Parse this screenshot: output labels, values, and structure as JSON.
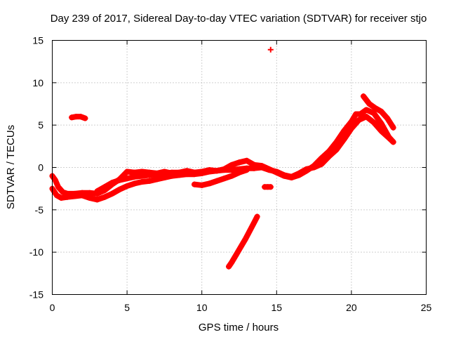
{
  "chart_data": {
    "type": "scatter",
    "title": "Day 239 of 2017, Sidereal Day-to-day VTEC variation (SDTVAR) for receiver stjo",
    "xlabel": "GPS time / hours",
    "ylabel": "SDTVAR / TECUs",
    "xlim": [
      0,
      25
    ],
    "ylim": [
      -15,
      15
    ],
    "xticks": [
      0,
      5,
      10,
      15,
      20,
      25
    ],
    "yticks": [
      -15,
      -10,
      -5,
      0,
      5,
      10,
      15
    ],
    "grid": true,
    "marker": "+",
    "series_color": "#ff0000",
    "series": [
      {
        "name": "track-main-upper",
        "points": [
          [
            0.0,
            -1.0
          ],
          [
            0.2,
            -1.5
          ],
          [
            0.4,
            -2.3
          ],
          [
            0.7,
            -2.9
          ],
          [
            1.0,
            -3.1
          ],
          [
            1.5,
            -3.1
          ],
          [
            2.0,
            -3.0
          ],
          [
            2.5,
            -3.0
          ],
          [
            3.0,
            -3.1
          ],
          [
            3.5,
            -2.7
          ],
          [
            4.0,
            -2.0
          ],
          [
            4.5,
            -1.4
          ],
          [
            5.0,
            -0.5
          ],
          [
            5.5,
            -0.6
          ],
          [
            6.0,
            -0.5
          ],
          [
            6.5,
            -0.6
          ],
          [
            7.0,
            -0.7
          ],
          [
            7.5,
            -0.5
          ],
          [
            8.0,
            -0.7
          ],
          [
            8.5,
            -0.6
          ],
          [
            9.0,
            -0.4
          ],
          [
            9.5,
            -0.6
          ],
          [
            10.0,
            -0.5
          ],
          [
            10.5,
            -0.3
          ],
          [
            11.0,
            -0.4
          ],
          [
            11.5,
            -0.2
          ],
          [
            12.0,
            0.3
          ],
          [
            12.5,
            0.6
          ],
          [
            13.0,
            0.8
          ],
          [
            13.5,
            0.3
          ],
          [
            14.0,
            0.2
          ],
          [
            14.5,
            -0.2
          ],
          [
            15.0,
            -0.6
          ],
          [
            15.5,
            -1.0
          ],
          [
            16.0,
            -1.2
          ],
          [
            16.5,
            -0.9
          ],
          [
            17.0,
            -0.4
          ],
          [
            17.5,
            0.2
          ],
          [
            18.0,
            1.1
          ],
          [
            18.5,
            1.9
          ],
          [
            19.0,
            3.0
          ],
          [
            19.5,
            4.3
          ],
          [
            20.0,
            5.4
          ],
          [
            20.3,
            6.3
          ],
          [
            20.6,
            6.3
          ],
          [
            21.0,
            6.8
          ],
          [
            21.5,
            6.4
          ],
          [
            22.0,
            5.2
          ],
          [
            22.5,
            3.6
          ],
          [
            22.8,
            3.0
          ]
        ]
      },
      {
        "name": "track-main-lower",
        "points": [
          [
            0.0,
            -2.5
          ],
          [
            0.3,
            -3.3
          ],
          [
            0.6,
            -3.6
          ],
          [
            1.0,
            -3.5
          ],
          [
            1.5,
            -3.4
          ],
          [
            2.0,
            -3.3
          ],
          [
            2.5,
            -3.6
          ],
          [
            3.0,
            -3.8
          ],
          [
            3.5,
            -3.5
          ],
          [
            4.0,
            -3.1
          ],
          [
            4.5,
            -2.6
          ],
          [
            5.0,
            -2.2
          ],
          [
            5.5,
            -1.9
          ],
          [
            6.0,
            -1.7
          ],
          [
            6.5,
            -1.6
          ],
          [
            7.0,
            -1.4
          ],
          [
            7.5,
            -1.2
          ],
          [
            8.0,
            -1.0
          ],
          [
            8.5,
            -0.9
          ],
          [
            9.0,
            -0.8
          ],
          [
            9.5,
            -0.8
          ],
          [
            10.0,
            -0.7
          ],
          [
            10.5,
            -0.5
          ],
          [
            11.0,
            -0.4
          ],
          [
            11.5,
            -0.3
          ],
          [
            12.0,
            -0.3
          ],
          [
            12.5,
            -0.2
          ],
          [
            13.0,
            -0.1
          ],
          [
            13.5,
            -0.1
          ],
          [
            14.0,
            0.0
          ],
          [
            14.5,
            -0.3
          ],
          [
            15.0,
            -0.5
          ],
          [
            15.5,
            -0.9
          ],
          [
            16.0,
            -1.1
          ],
          [
            16.5,
            -0.7
          ],
          [
            17.0,
            -0.2
          ],
          [
            17.5,
            0.0
          ],
          [
            18.0,
            0.4
          ],
          [
            18.5,
            1.3
          ],
          [
            19.0,
            2.1
          ],
          [
            19.5,
            3.3
          ],
          [
            20.0,
            4.6
          ],
          [
            20.5,
            5.6
          ],
          [
            21.0,
            6.0
          ],
          [
            21.5,
            5.3
          ],
          [
            22.0,
            4.3
          ],
          [
            22.5,
            3.5
          ],
          [
            22.8,
            3.0
          ]
        ]
      },
      {
        "name": "track-mid-branch",
        "points": [
          [
            3.0,
            -2.8
          ],
          [
            3.5,
            -2.3
          ],
          [
            4.0,
            -1.8
          ],
          [
            4.5,
            -1.5
          ],
          [
            5.0,
            -1.3
          ],
          [
            5.5,
            -1.1
          ],
          [
            6.0,
            -1.0
          ],
          [
            6.5,
            -0.9
          ],
          [
            7.0,
            -0.8
          ],
          [
            7.5,
            -0.7
          ],
          [
            8.0,
            -0.6
          ],
          [
            8.5,
            -0.6
          ],
          [
            9.0,
            -0.6
          ]
        ]
      },
      {
        "name": "track-lower-dip",
        "points": [
          [
            9.5,
            -2.0
          ],
          [
            10.0,
            -2.1
          ],
          [
            10.5,
            -1.9
          ],
          [
            11.0,
            -1.6
          ],
          [
            11.5,
            -1.3
          ],
          [
            12.0,
            -1.0
          ],
          [
            12.5,
            -0.6
          ],
          [
            13.0,
            -0.3
          ]
        ]
      },
      {
        "name": "track-late-branch",
        "points": [
          [
            20.8,
            8.4
          ],
          [
            21.2,
            7.5
          ],
          [
            21.6,
            7.0
          ],
          [
            22.0,
            6.6
          ],
          [
            22.4,
            5.8
          ],
          [
            22.8,
            4.7
          ]
        ]
      },
      {
        "name": "track-falling",
        "points": [
          [
            11.8,
            -11.7
          ],
          [
            12.0,
            -11.2
          ],
          [
            12.3,
            -10.3
          ],
          [
            12.6,
            -9.4
          ],
          [
            12.9,
            -8.5
          ],
          [
            13.2,
            -7.5
          ],
          [
            13.5,
            -6.5
          ],
          [
            13.7,
            -5.8
          ]
        ]
      },
      {
        "name": "track-short-high",
        "points": [
          [
            1.3,
            5.9
          ],
          [
            1.6,
            6.0
          ],
          [
            1.9,
            6.0
          ],
          [
            2.2,
            5.8
          ]
        ]
      },
      {
        "name": "outlier-high",
        "points": [
          [
            14.6,
            13.9
          ]
        ]
      },
      {
        "name": "outlier-low",
        "points": [
          [
            14.2,
            -2.3
          ],
          [
            14.4,
            -2.3
          ],
          [
            14.6,
            -2.3
          ]
        ]
      }
    ]
  }
}
